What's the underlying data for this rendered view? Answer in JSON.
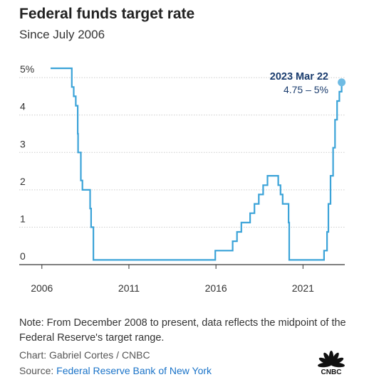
{
  "header": {
    "title": "Federal funds target rate",
    "subtitle": "Since July 2006"
  },
  "footer": {
    "note": "Note: From December 2008 to present, data reflects the midpoint of the Federal Reserve's target range.",
    "chart_credit": "Chart: Gabriel Cortes / CNBC",
    "source_prefix": "Source: ",
    "source_name": "Federal Reserve Bank of New York",
    "logo_text": "CNBC"
  },
  "colors": {
    "line": "#3ba3d8",
    "grid": "#cccccc",
    "axis": "#333333",
    "annotation": "#1a3c6e",
    "marker": "#6fbbe3",
    "source_link": "#1a73c8"
  },
  "chart_data": {
    "type": "line",
    "title": "Federal funds target rate",
    "subtitle": "Since July 2006",
    "xlabel": "",
    "ylabel": "",
    "xlim": [
      2004.7,
      2023.4
    ],
    "ylim": [
      0,
      5.25
    ],
    "y_ticks": [
      0,
      1,
      2,
      3,
      4,
      5
    ],
    "y_tick_labels": [
      "0",
      "1",
      "2",
      "3",
      "4",
      "5%"
    ],
    "x_ticks": [
      2006,
      2011,
      2016,
      2021
    ],
    "x_tick_labels": [
      "2006",
      "2011",
      "2016",
      "2021"
    ],
    "grid": "horizontal",
    "annotation": {
      "label": "2023 Mar 22",
      "value_text": "4.75 – 5%",
      "x": 2023.22,
      "y": 4.875
    },
    "series": [
      {
        "step": true,
        "points": [
          [
            2006.5,
            5.25
          ],
          [
            2007.72,
            4.75
          ],
          [
            2007.83,
            4.5
          ],
          [
            2007.95,
            4.25
          ],
          [
            2008.06,
            3.5
          ],
          [
            2008.08,
            3.0
          ],
          [
            2008.24,
            2.25
          ],
          [
            2008.33,
            2.0
          ],
          [
            2008.77,
            1.5
          ],
          [
            2008.83,
            1.0
          ],
          [
            2008.96,
            0.125
          ],
          [
            2015.96,
            0.375
          ],
          [
            2016.96,
            0.625
          ],
          [
            2017.21,
            0.875
          ],
          [
            2017.46,
            1.125
          ],
          [
            2017.96,
            1.375
          ],
          [
            2018.21,
            1.625
          ],
          [
            2018.46,
            1.875
          ],
          [
            2018.71,
            2.125
          ],
          [
            2018.96,
            2.375
          ],
          [
            2019.58,
            2.125
          ],
          [
            2019.71,
            1.875
          ],
          [
            2019.83,
            1.625
          ],
          [
            2020.17,
            1.125
          ],
          [
            2020.21,
            0.125
          ],
          [
            2022.21,
            0.375
          ],
          [
            2022.38,
            0.875
          ],
          [
            2022.46,
            1.625
          ],
          [
            2022.58,
            2.375
          ],
          [
            2022.73,
            3.125
          ],
          [
            2022.84,
            3.875
          ],
          [
            2022.96,
            4.375
          ],
          [
            2023.09,
            4.625
          ],
          [
            2023.22,
            4.875
          ]
        ]
      }
    ]
  }
}
